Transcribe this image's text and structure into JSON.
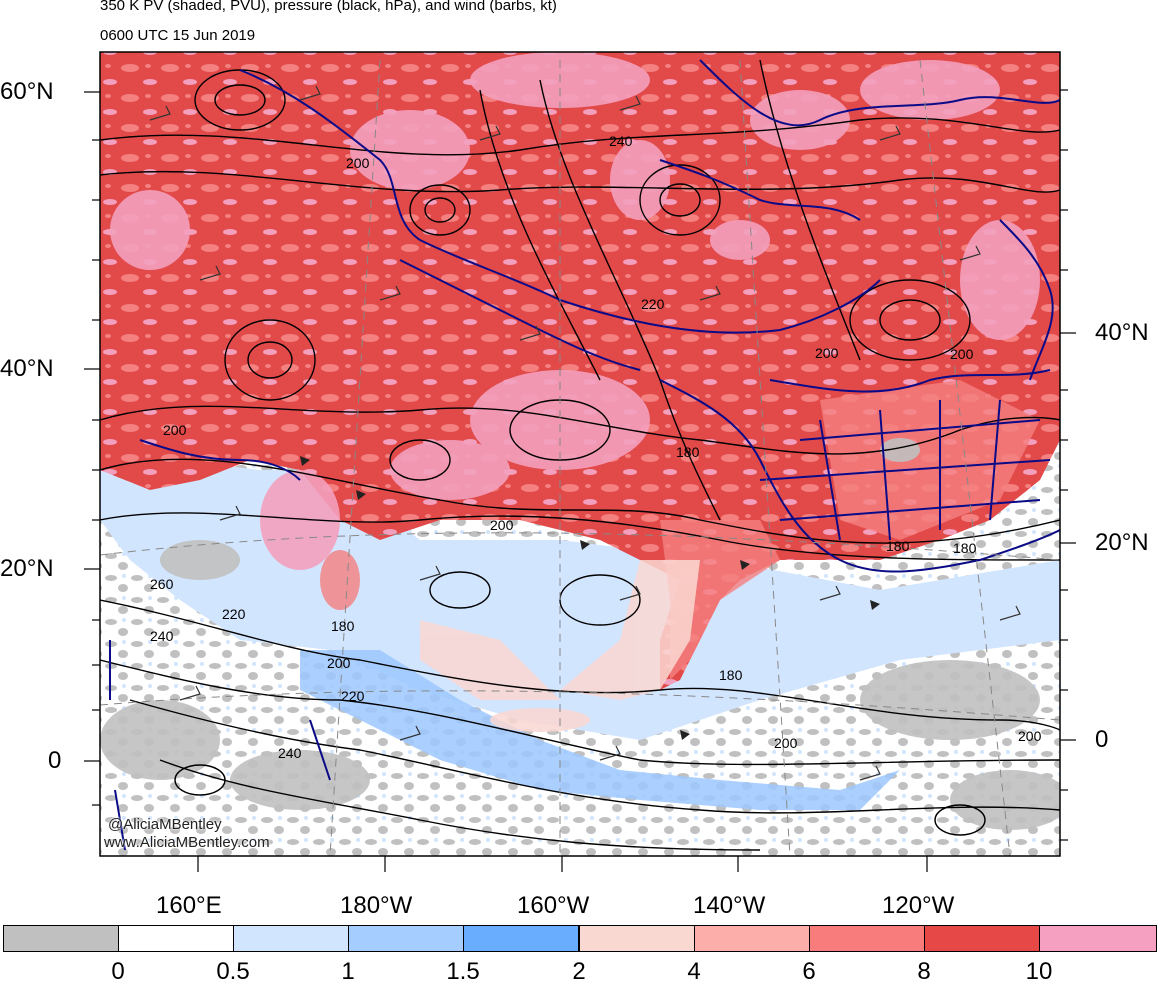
{
  "title": {
    "line1": "350 K PV (shaded, PVU), pressure (black, hPa), and wind (barbs, kt)",
    "line2": "0600 UTC 15 Jun 2019"
  },
  "lat_labels_left": [
    "60°N",
    "40°N",
    "20°N",
    "0"
  ],
  "lat_labels_right": [
    "40°N",
    "20°N",
    "0"
  ],
  "lon_labels": [
    "160°E",
    "180°W",
    "160°W",
    "140°W",
    "120°W"
  ],
  "contour_labels": [
    "200",
    "240",
    "220",
    "200",
    "200",
    "200",
    "180",
    "200",
    "260",
    "220",
    "240",
    "180",
    "200",
    "220",
    "240",
    "180",
    "180",
    "180",
    "200",
    "200"
  ],
  "credit": {
    "twitter": "@AliciaMBentley",
    "web": "www.AliciaMBentley.com"
  },
  "colorbar": {
    "colors": [
      "#c0c0c0",
      "#ffffff",
      "#d2e5ff",
      "#a5cdff",
      "#68adff",
      "#fad8d2",
      "#fcaeaa",
      "#f87c7c",
      "#e64848",
      "#f5a0c0"
    ],
    "labels": [
      "0",
      "0.5",
      "1",
      "1.5",
      "2",
      "4",
      "6",
      "8",
      "10"
    ]
  },
  "map_colors": {
    "pv_red": "#e24a4a",
    "pv_pink": "#f3a0be",
    "pv_lightred": "#f58080",
    "pv_blue_light": "#d2e5ff",
    "pv_blue": "#9cc8ff",
    "pv_gray": "#c0c0c0",
    "coast": "#0b0b88"
  }
}
